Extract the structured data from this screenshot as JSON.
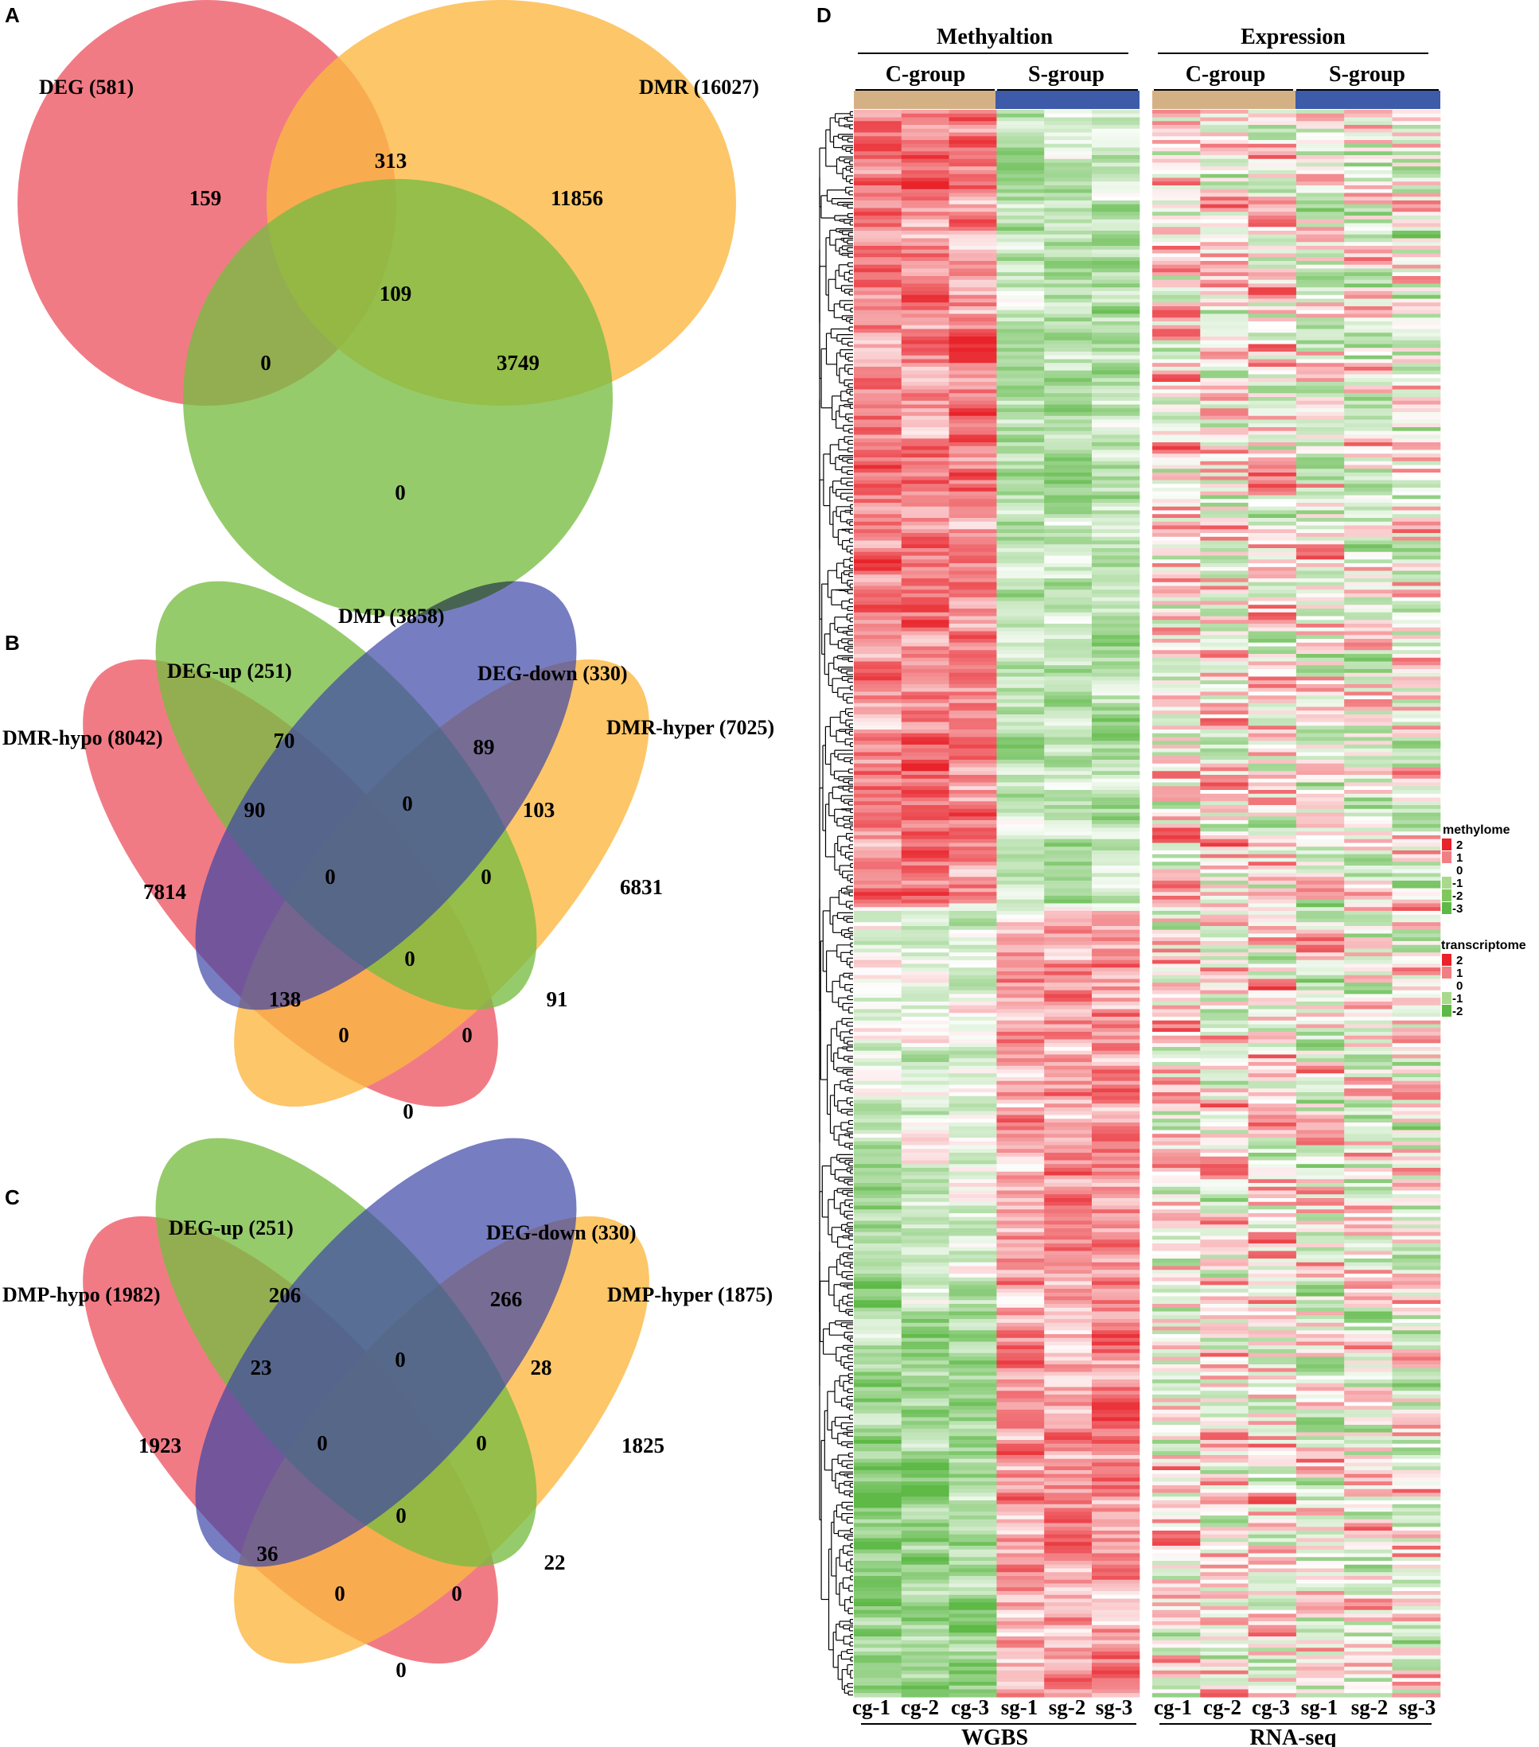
{
  "colors": {
    "pink": "#ee5a66",
    "orange": "#fbb843",
    "green": "#78bd41",
    "blue": "#3d46a6",
    "tan": "#d4b184",
    "heat_red": "#e8232a",
    "heat_green": "#5eb947"
  },
  "chart_data": [
    {
      "panel": "A",
      "type": "venn",
      "sets": [
        {
          "name": "DEG",
          "label": "DEG (581)",
          "size": 581
        },
        {
          "name": "DMR",
          "label": "DMR (16027)",
          "size": 16027
        },
        {
          "name": "DMP",
          "label": "DMP (3858)",
          "size": 3858
        }
      ],
      "regions": [
        {
          "sets": [
            "DEG"
          ],
          "value": 159
        },
        {
          "sets": [
            "DEG",
            "DMR"
          ],
          "value": 313
        },
        {
          "sets": [
            "DMR"
          ],
          "value": 11856
        },
        {
          "sets": [
            "DEG",
            "DMR",
            "DMP"
          ],
          "value": 109
        },
        {
          "sets": [
            "DEG",
            "DMP"
          ],
          "value": 0
        },
        {
          "sets": [
            "DMR",
            "DMP"
          ],
          "value": 3749
        },
        {
          "sets": [
            "DMP"
          ],
          "value": 0
        }
      ]
    },
    {
      "panel": "B",
      "type": "venn",
      "sets": [
        {
          "name": "DMR-hypo",
          "label": "DMR-hypo (8042)",
          "size": 8042
        },
        {
          "name": "DEG-up",
          "label": "DEG-up (251)",
          "size": 251
        },
        {
          "name": "DEG-down",
          "label": "DEG-down (330)",
          "size": 330
        },
        {
          "name": "DMR-hyper",
          "label": "DMR-hyper (7025)",
          "size": 7025
        }
      ],
      "regions": [
        {
          "sets": [
            "DEG-up"
          ],
          "value": 70
        },
        {
          "sets": [
            "DEG-down"
          ],
          "value": 89
        },
        {
          "sets": [
            "DMR-hypo",
            "DEG-up"
          ],
          "value": 90
        },
        {
          "sets": [
            "DEG-up",
            "DEG-down"
          ],
          "value": 0
        },
        {
          "sets": [
            "DEG-down",
            "DMR-hyper"
          ],
          "value": 103
        },
        {
          "sets": [
            "DMR-hypo"
          ],
          "value": 7814
        },
        {
          "sets": [
            "DMR-hypo",
            "DEG-up",
            "DEG-down"
          ],
          "value": 0
        },
        {
          "sets": [
            "DEG-up",
            "DEG-down",
            "DMR-hyper"
          ],
          "value": 0
        },
        {
          "sets": [
            "DMR-hyper"
          ],
          "value": 6831
        },
        {
          "sets": [
            "DMR-hypo",
            "DEG-up",
            "DEG-down",
            "DMR-hyper"
          ],
          "value": 0
        },
        {
          "sets": [
            "DMR-hypo",
            "DEG-down"
          ],
          "value": 138
        },
        {
          "sets": [
            "DEG-up",
            "DMR-hyper"
          ],
          "value": 91
        },
        {
          "sets": [
            "DMR-hypo",
            "DEG-down",
            "DMR-hyper"
          ],
          "value": 0
        },
        {
          "sets": [
            "DMR-hypo",
            "DEG-up",
            "DMR-hyper"
          ],
          "value": 0
        },
        {
          "sets": [
            "DMR-hypo",
            "DMR-hyper"
          ],
          "value": 0
        }
      ]
    },
    {
      "panel": "C",
      "type": "venn",
      "sets": [
        {
          "name": "DMP-hypo",
          "label": "DMP-hypo (1982)",
          "size": 1982
        },
        {
          "name": "DEG-up",
          "label": "DEG-up (251)",
          "size": 251
        },
        {
          "name": "DEG-down",
          "label": "DEG-down (330)",
          "size": 330
        },
        {
          "name": "DMP-hyper",
          "label": "DMP-hyper (1875)",
          "size": 1875
        }
      ],
      "regions": [
        {
          "sets": [
            "DEG-up"
          ],
          "value": 206
        },
        {
          "sets": [
            "DEG-down"
          ],
          "value": 266
        },
        {
          "sets": [
            "DMP-hypo",
            "DEG-up"
          ],
          "value": 23
        },
        {
          "sets": [
            "DEG-up",
            "DEG-down"
          ],
          "value": 0
        },
        {
          "sets": [
            "DEG-down",
            "DMP-hyper"
          ],
          "value": 28
        },
        {
          "sets": [
            "DMP-hypo"
          ],
          "value": 1923
        },
        {
          "sets": [
            "DMP-hypo",
            "DEG-up",
            "DEG-down"
          ],
          "value": 0
        },
        {
          "sets": [
            "DEG-up",
            "DEG-down",
            "DMP-hyper"
          ],
          "value": 0
        },
        {
          "sets": [
            "DMP-hyper"
          ],
          "value": 1825
        },
        {
          "sets": [
            "DMP-hypo",
            "DEG-up",
            "DEG-down",
            "DMP-hyper"
          ],
          "value": 0
        },
        {
          "sets": [
            "DMP-hypo",
            "DEG-down"
          ],
          "value": 36
        },
        {
          "sets": [
            "DEG-up",
            "DMP-hyper"
          ],
          "value": 22
        },
        {
          "sets": [
            "DMP-hypo",
            "DEG-down",
            "DMP-hyper"
          ],
          "value": 0
        },
        {
          "sets": [
            "DMP-hypo",
            "DEG-up",
            "DMP-hyper"
          ],
          "value": 0
        },
        {
          "sets": [
            "DMP-hypo",
            "DMP-hyper"
          ],
          "value": 0
        }
      ]
    },
    {
      "panel": "D",
      "type": "heatmap",
      "blocks": [
        {
          "title": "Methyaltion",
          "groups": [
            "C-group",
            "S-group"
          ],
          "columns": [
            "cg-1",
            "cg-2",
            "cg-3",
            "sg-1",
            "sg-2",
            "sg-3"
          ],
          "footer": "WGBS"
        },
        {
          "title": "Expression",
          "groups": [
            "C-group",
            "S-group"
          ],
          "columns": [
            "cg-1",
            "cg-2",
            "cg-3",
            "sg-1",
            "sg-2",
            "sg-3"
          ],
          "footer": "RNA-seq"
        }
      ],
      "legends": [
        {
          "title": "methylome",
          "ticks": [
            "2",
            "1",
            "0",
            "-1",
            "-2",
            "-3"
          ],
          "range": [
            -3,
            2
          ]
        },
        {
          "title": "transcriptome",
          "ticks": [
            "2",
            "1",
            "0",
            "-1",
            "-2"
          ],
          "range": [
            -2,
            2
          ]
        }
      ],
      "row_dendrogram": true
    }
  ],
  "panel_letters": [
    "A",
    "B",
    "C",
    "D"
  ]
}
